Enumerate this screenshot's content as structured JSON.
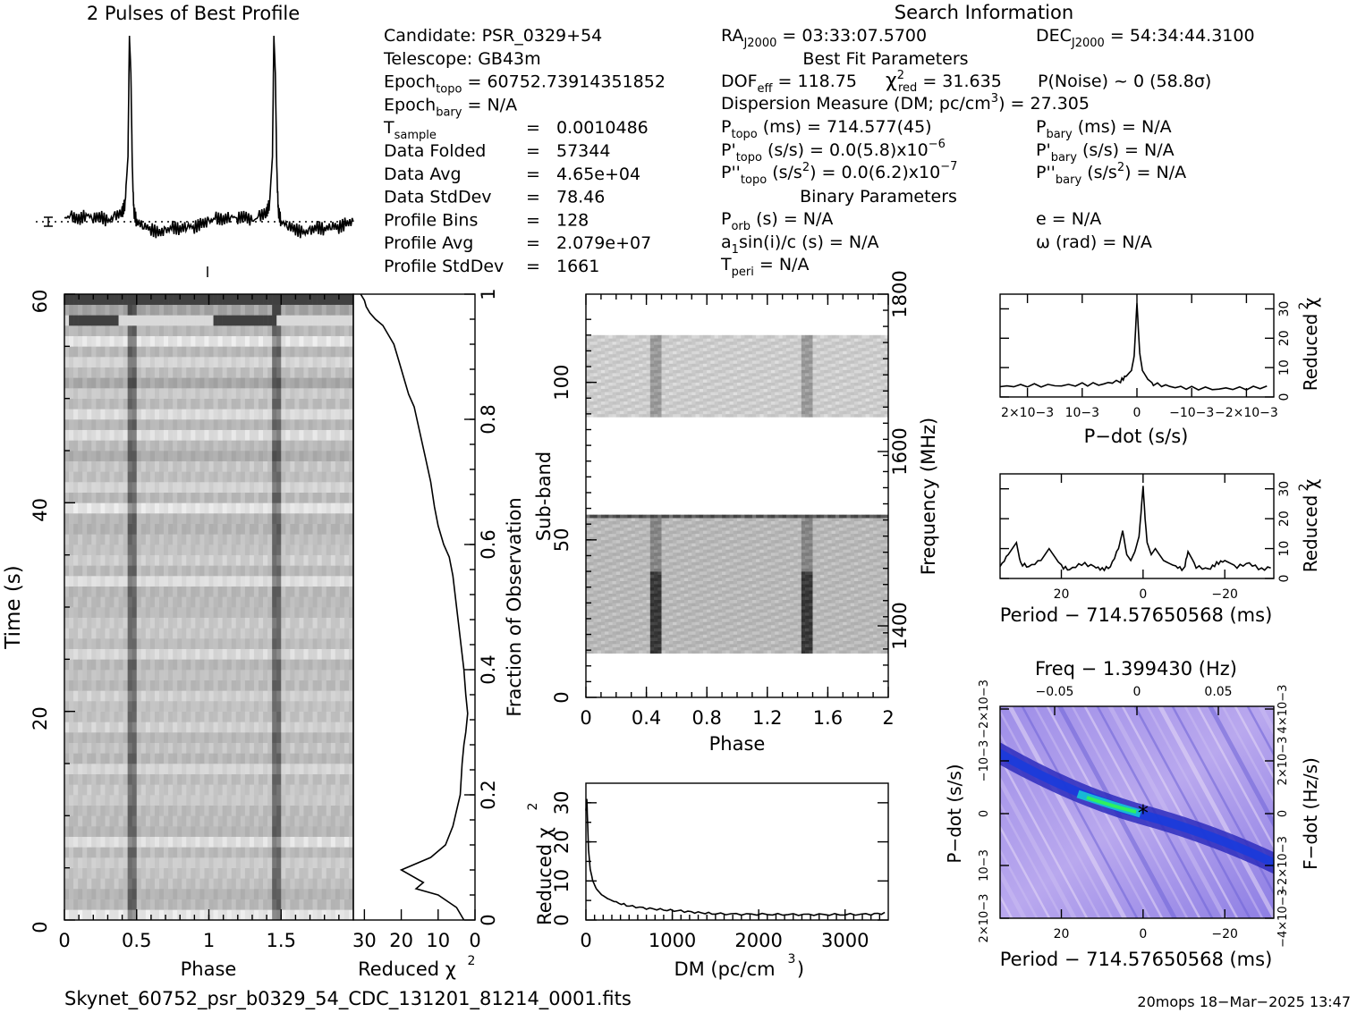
{
  "header": {
    "profile_title": "2 Pulses of Best Profile",
    "search_title": "Search Information",
    "best_fit_title": "Best Fit Parameters",
    "binary_title": "Binary Parameters"
  },
  "info_left": [
    {
      "label": "Candidate:  PSR_0329+54"
    },
    {
      "label": "Telescope:  GB43m"
    },
    {
      "label": "Epoch",
      "sub": "topo",
      "rest": " = 60752.73914351852"
    },
    {
      "label": "Epoch",
      "sub": "bary",
      "rest": " = N/A"
    },
    {
      "label": "T",
      "sub": "sample",
      "eq": "=",
      "val": "0.0010486"
    },
    {
      "label": "Data Folded",
      "eq": "=",
      "val": "57344"
    },
    {
      "label": "Data Avg",
      "eq": "=",
      "val": "4.65e+04"
    },
    {
      "label": "Data StdDev",
      "eq": "=",
      "val": "78.46"
    },
    {
      "label": "Profile Bins",
      "eq": "=",
      "val": "128"
    },
    {
      "label": "Profile Avg",
      "eq": "=",
      "val": "2.079e+07"
    },
    {
      "label": "Profile StdDev",
      "eq": "=",
      "val": "1661"
    }
  ],
  "search_info": {
    "ra_label": "RA",
    "ra_sub": "J2000",
    "ra_val": " = 03:33:07.5700",
    "dec_label": "DEC",
    "dec_sub": "J2000",
    "dec_val": " = 54:34:44.3100",
    "dof_label": "DOF",
    "dof_sub": "eff",
    "dof_val": " = 118.75",
    "chi_label": "χ",
    "chi_sup": "2",
    "chi_sub": "red",
    "chi_val": " = 31.635",
    "pnoise": "P(Noise) ~ 0    (58.8σ)",
    "dm_text": "Dispersion Measure (DM; pc/cm",
    "dm_sup": "3",
    "dm_val": ") = 27.305",
    "ptopo_label": "P",
    "ptopo_sub": "topo",
    "ptopo_val": " (ms) =  714.577(45)",
    "pdtopo_label": "P'",
    "pdtopo_sub": "topo",
    "pdtopo_val": " (s/s) = 0.0(5.8)x10",
    "pdtopo_exp": "−6",
    "pddtopo_label": "P''",
    "pddtopo_sub": "topo",
    "pddtopo_val": " (s/s",
    "pddtopo_sup": "2",
    "pddtopo_val2": ") = 0.0(6.2)x10",
    "pddtopo_exp": "−7",
    "pbary_label": "P",
    "pbary_sub": "bary",
    "pbary_val": " (ms) = N/A",
    "pdbary_label": "P'",
    "pdbary_sub": "bary",
    "pdbary_val": " (s/s) = N/A",
    "pddbary_label": "P''",
    "pddbary_sub": "bary",
    "pddbary_val": " (s/s",
    "pddbary_sup": "2",
    "pddbary_val2": ") = N/A",
    "porb_label": "P",
    "porb_sub": "orb",
    "porb_val": " (s) = N/A",
    "a1_label": "a",
    "a1_sub": "1",
    "a1_val": "sin(i)/c (s) = N/A",
    "tperi_label": "T",
    "tperi_sub": "peri",
    "tperi_val": " = N/A",
    "e_val": "e = N/A",
    "omega_val": "ω (rad) = N/A"
  },
  "footer": {
    "filename": "Skynet_60752_psr_b0329_54_CDC_131201_81214_0001.fits",
    "stamp": "20mops 18−Mar−2025 13:47"
  },
  "colors": {
    "foreground": "#000000",
    "background": "#ffffff",
    "pd_low": "#b9a8ee",
    "pd_mid": "#1a3bdc",
    "pd_peak": "#2ef060"
  },
  "chart_data": [
    {
      "id": "profile",
      "type": "line",
      "title": "2 Pulses of Best Profile",
      "x": [
        0,
        0.05,
        0.1,
        0.15,
        0.2,
        0.25,
        0.3,
        0.35,
        0.4,
        0.42,
        0.44,
        0.45,
        0.46,
        0.47,
        0.48,
        0.5,
        0.55,
        0.6,
        0.65,
        0.7,
        0.75,
        0.8,
        0.85,
        0.9,
        0.95,
        1.0,
        1.05,
        1.1,
        1.15,
        1.2,
        1.25,
        1.3,
        1.35,
        1.4,
        1.42,
        1.44,
        1.45,
        1.46,
        1.47,
        1.48,
        1.5,
        1.55,
        1.6,
        1.65,
        1.7,
        1.75,
        1.8,
        1.85,
        1.9,
        1.95,
        2.0
      ],
      "y": [
        0.02,
        0.03,
        0.01,
        0.04,
        0.02,
        0.03,
        0.0,
        0.03,
        0.05,
        0.1,
        0.35,
        1.0,
        0.8,
        0.3,
        0.06,
        0.0,
        -0.02,
        -0.04,
        -0.06,
        -0.05,
        -0.03,
        -0.04,
        -0.02,
        -0.03,
        -0.01,
        0.0,
        0.02,
        0.01,
        0.03,
        0.02,
        0.03,
        0.0,
        0.03,
        0.05,
        0.1,
        0.35,
        1.0,
        0.8,
        0.3,
        0.06,
        0.0,
        -0.02,
        -0.04,
        -0.06,
        -0.05,
        -0.03,
        -0.04,
        -0.02,
        -0.03,
        -0.01,
        0.0
      ]
    },
    {
      "id": "time_phase",
      "type": "heatmap",
      "xlabel": "Phase",
      "ylabel": "Time (s)",
      "xticks": [
        "0",
        "0.5",
        "1",
        "1.5"
      ],
      "yticks": [
        "0",
        "20",
        "40",
        "60"
      ],
      "xlim": [
        0,
        2
      ],
      "ylim": [
        0,
        60
      ],
      "pulse_phases": [
        0.45,
        1.45
      ]
    },
    {
      "id": "time_chi2",
      "type": "line",
      "xlabel": "Reduced χ2",
      "ylabel": "Fraction of Observation",
      "xticks": [
        "30",
        "20",
        "10",
        "0"
      ],
      "yticks": [
        "0",
        "0.2",
        "0.4",
        "0.6",
        "0.8",
        "1"
      ],
      "xlim": [
        33,
        0
      ],
      "ylim": [
        0,
        1
      ],
      "x": [
        3,
        5,
        10,
        16,
        14,
        20,
        12,
        8,
        6,
        4,
        3.5,
        3,
        2.5,
        2,
        2.5,
        3,
        4,
        5,
        6,
        7,
        8.5,
        10,
        11,
        12,
        13.5,
        15,
        16.5,
        18,
        19,
        20,
        21,
        22,
        24,
        25,
        27,
        28.5,
        29.5,
        30,
        31
      ],
      "y": [
        0,
        0.02,
        0.04,
        0.05,
        0.06,
        0.08,
        0.1,
        0.12,
        0.15,
        0.2,
        0.25,
        0.28,
        0.3,
        0.33,
        0.36,
        0.4,
        0.45,
        0.5,
        0.55,
        0.58,
        0.6,
        0.63,
        0.66,
        0.7,
        0.74,
        0.78,
        0.82,
        0.84,
        0.86,
        0.88,
        0.9,
        0.92,
        0.94,
        0.95,
        0.96,
        0.97,
        0.98,
        0.99,
        1.0
      ]
    },
    {
      "id": "subband",
      "type": "heatmap",
      "xlabel": "Phase",
      "ylabel": "Sub-band",
      "y2label": "Frequency (MHz)",
      "xticks": [
        "0",
        "0.4",
        "0.8",
        "1.2",
        "1.6",
        "2"
      ],
      "yticks": [
        "0",
        "50",
        "100"
      ],
      "y2ticks": [
        "1400",
        "1600",
        "1800"
      ],
      "xlim": [
        0,
        2
      ],
      "ylim": [
        0,
        128
      ],
      "bands": [
        [
          14,
          58
        ],
        [
          89,
          115
        ]
      ],
      "pulse_phases": [
        0.45,
        1.45
      ]
    },
    {
      "id": "dm_chi2",
      "type": "line",
      "xlabel": "DM (pc/cm3)",
      "ylabel": "Reduced χ2",
      "xticks": [
        "0",
        "1000",
        "2000",
        "3000"
      ],
      "yticks": [
        "0",
        "10",
        "20",
        "30"
      ],
      "xlim": [
        0,
        3500
      ],
      "ylim": [
        0,
        35
      ],
      "x": [
        0,
        10,
        20,
        30,
        50,
        80,
        120,
        180,
        250,
        350,
        500,
        700,
        900,
        1100,
        1300,
        1500,
        1800,
        2100,
        2400,
        2700,
        3000,
        3300,
        3500
      ],
      "y": [
        28,
        31,
        25,
        18,
        13,
        10,
        8,
        6.5,
        5.5,
        4.5,
        3.6,
        3.0,
        2.6,
        2.3,
        1.9,
        1.6,
        1.5,
        1.45,
        1.4,
        1.4,
        1.4,
        1.5,
        1.8
      ]
    },
    {
      "id": "pdot_chi2",
      "type": "line",
      "xlabel": "P−dot (s/s)",
      "ylabel": "Reduced χ2",
      "xticks": [
        "2×10−3",
        "10−3",
        "0",
        "−10−3",
        "−2×10−3"
      ],
      "yticks": [
        "0",
        "10",
        "20",
        "30"
      ],
      "xlim": [
        0.0025,
        -0.0025
      ],
      "ylim": [
        0,
        35
      ],
      "x": [
        0.0025,
        0.002,
        0.0015,
        0.001,
        0.0006,
        0.0003,
        0.0002,
        0.0001,
        5e-05,
        0.0,
        -5e-05,
        -0.0001,
        -0.0002,
        -0.0003,
        -0.0006,
        -0.001,
        -0.0015,
        -0.002,
        -0.0025
      ],
      "y": [
        3.5,
        4,
        3.8,
        4.2,
        4.5,
        5.5,
        7,
        9,
        14,
        32,
        15,
        9,
        6,
        4.5,
        3.5,
        3,
        2.8,
        3,
        3.5
      ]
    },
    {
      "id": "period_chi2",
      "type": "line",
      "xlabel": "Period − 714.57650568 (ms)",
      "ylabel": "Reduced χ2",
      "xticks": [
        "20",
        "0",
        "−20"
      ],
      "yticks": [
        "0",
        "10",
        "20",
        "30"
      ],
      "xlim": [
        35,
        -32
      ],
      "ylim": [
        0,
        35
      ],
      "x": [
        35,
        33,
        31,
        30,
        28,
        25,
        23,
        20,
        18,
        15,
        12,
        10,
        8,
        6,
        5,
        4,
        3,
        2,
        1,
        0.5,
        0,
        -0.5,
        -1,
        -2,
        -3,
        -5,
        -8,
        -10,
        -11,
        -13,
        -16,
        -18,
        -20,
        -23,
        -26,
        -29,
        -32
      ],
      "y": [
        4,
        8,
        12,
        5,
        4,
        6,
        10,
        4,
        3,
        5,
        4,
        3,
        4,
        10,
        16,
        8,
        6,
        9,
        14,
        22,
        31,
        20,
        12,
        8,
        10,
        6,
        4,
        3,
        9,
        4,
        3,
        5,
        6,
        4,
        5,
        3,
        4
      ]
    },
    {
      "id": "pdot_period",
      "type": "heatmap",
      "xlabel": "Period − 714.57650568 (ms)",
      "ylabel": "P−dot (s/s)",
      "x2label": "Freq − 1.399430 (Hz)",
      "y2label": "F−dot (Hz/s)",
      "xticks": [
        "20",
        "0",
        "−20"
      ],
      "yticks": [
        "2×10−3",
        "10−3",
        "0",
        "−10−3",
        "−2×10−3"
      ],
      "x2ticks": [
        "−0.05",
        "0",
        "0.05"
      ],
      "y2ticks": [
        "−4×10−3",
        "−2×10−3",
        "0",
        "2×10−3",
        "4×10−3"
      ],
      "xlim": [
        35,
        -32
      ],
      "ylim": [
        0.0025,
        -0.0025
      ],
      "best": [
        0,
        0
      ]
    }
  ]
}
